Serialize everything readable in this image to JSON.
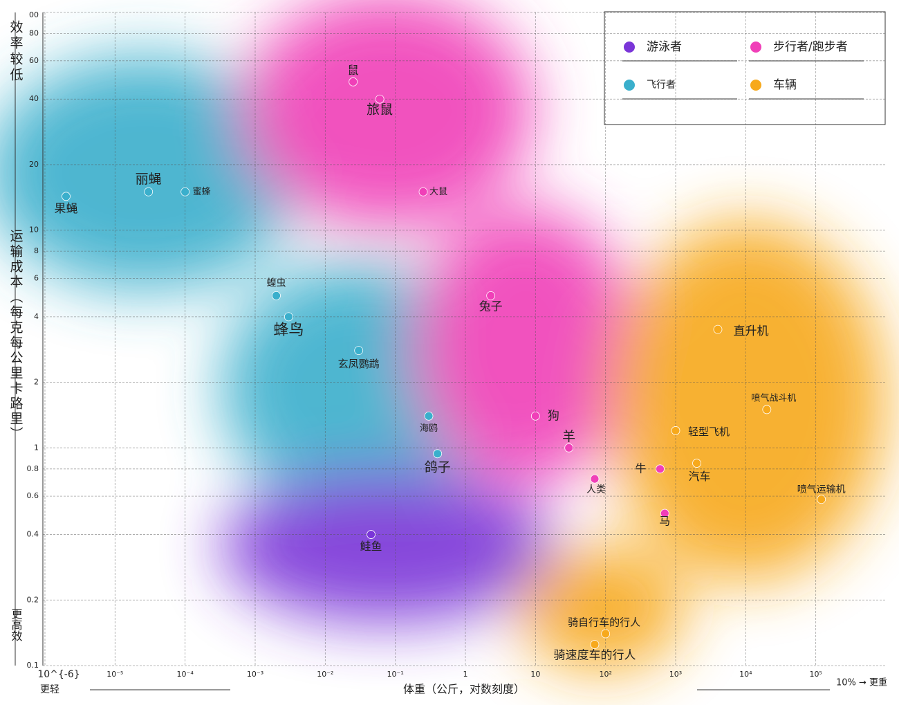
{
  "chart_data": {
    "type": "scatter",
    "y_title_top": "效率较低",
    "y_title": "运输成本（每克每公里卡路里）",
    "y_title_bottom": "更高效",
    "x_title": "体重（公斤，对数刻度）",
    "x_left_note": "更轻",
    "x_right_note": "10% → 更重",
    "xlog": true,
    "ylog": true,
    "grid": true,
    "legend": "top-right",
    "xlim": [
      1e-06,
      1000000
    ],
    "ylim": [
      0.1,
      100
    ],
    "xticks": [
      {
        "value": 1e-06,
        "label": "10^{-6}"
      },
      {
        "value": 1e-05,
        "label": "10⁻⁵"
      },
      {
        "value": 0.0001,
        "label": "10⁻⁴"
      },
      {
        "value": 0.001,
        "label": "10⁻³"
      },
      {
        "value": 0.01,
        "label": "10⁻²"
      },
      {
        "value": 0.1,
        "label": "10⁻¹"
      },
      1,
      10,
      {
        "value": 100,
        "label": "10²"
      },
      {
        "value": 1000,
        "label": "10³"
      },
      {
        "value": 10000,
        "label": "10⁴"
      },
      {
        "value": 100000,
        "label": "10⁵"
      }
    ],
    "yticks": [
      0.1,
      0.2,
      0.4,
      0.6,
      0.8,
      1,
      2,
      4,
      6,
      8,
      10,
      20,
      40,
      60,
      80,
      {
        "value": 100,
        "label": "00"
      }
    ],
    "series": [
      {
        "name": "游泳者",
        "color": "#7a35d8",
        "x": [
          0.045
        ],
        "values": [
          0.4
        ],
        "labels": [
          "鲑鱼"
        ]
      },
      {
        "name": "步行者/跑步者",
        "color": "#f03fb8",
        "x": [
          0.025,
          0.06,
          0.25,
          2.3,
          10,
          30,
          70,
          600,
          700
        ],
        "values": [
          48,
          40,
          15,
          5,
          1.4,
          1,
          0.72,
          0.8,
          0.5
        ],
        "labels": [
          "鼠",
          "旅鼠",
          "大鼠",
          "兔子",
          "狗",
          "羊",
          "人类",
          "牛",
          "马"
        ]
      },
      {
        "name": "飞行者",
        "color": "#3aafcc",
        "x": [
          2e-06,
          3e-05,
          0.0001,
          0.002,
          0.003,
          0.03,
          0.3,
          0.4
        ],
        "values": [
          14.3,
          15,
          15,
          5,
          4,
          2.8,
          1.4,
          0.94
        ],
        "labels": [
          "果蝇",
          "丽蝇",
          "蜜蜂",
          "蝗虫",
          "蜂鸟",
          "玄凤鹦鹉",
          "海鸥",
          "鸽子"
        ]
      },
      {
        "name": "车辆",
        "color": "#f7a91c",
        "x": [
          4000,
          20000,
          1000,
          2000,
          120000,
          100,
          70
        ],
        "values": [
          3.5,
          1.5,
          1.2,
          0.85,
          0.58,
          0.14,
          0.125
        ],
        "labels": [
          "直升机",
          "喷气战斗机",
          "轻型飞机",
          "汽车",
          "喷气运输机",
          "骑自行车的行人",
          "骑速度车的行人"
        ]
      }
    ]
  }
}
